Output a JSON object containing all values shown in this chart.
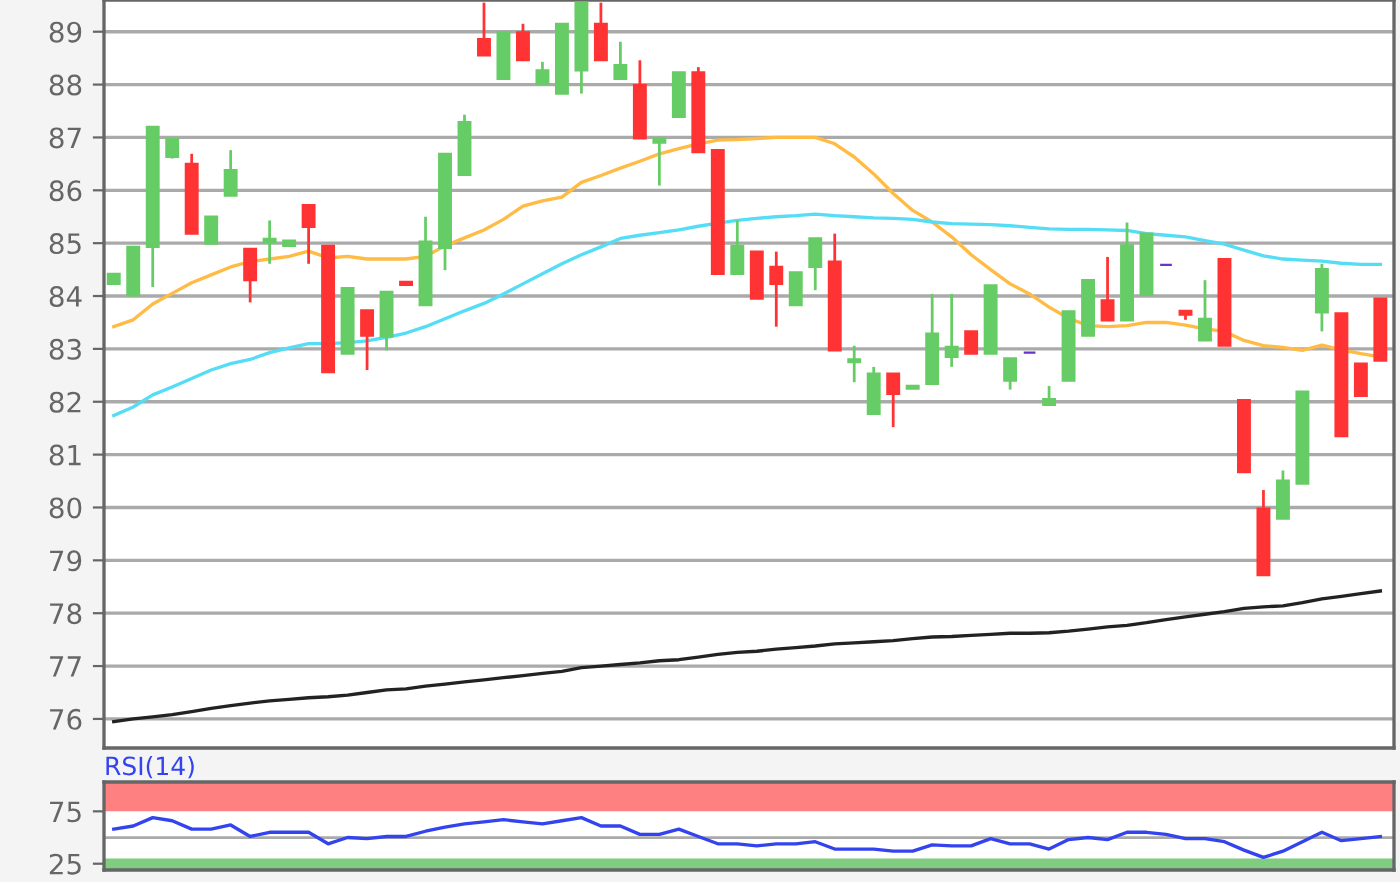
{
  "chart_data": [
    {
      "type": "candlestick",
      "categories": [
        null,
        null,
        null,
        null,
        null,
        null,
        null,
        null,
        null,
        null,
        null,
        null,
        null,
        null,
        null,
        null,
        null,
        null,
        null,
        null,
        null,
        null,
        null,
        null,
        null,
        null,
        null,
        null,
        null,
        null,
        null,
        null,
        null,
        null,
        null,
        null,
        null,
        null,
        null,
        null,
        null,
        null,
        null,
        null,
        null,
        null,
        null,
        null,
        null,
        null,
        null,
        null,
        null,
        null,
        null,
        null,
        null,
        null,
        null,
        null,
        null,
        null,
        null,
        null,
        null,
        null
      ],
      "ohlc": [
        [
          84.23,
          84.42,
          84.23,
          84.42
        ],
        [
          84.01,
          84.93,
          84.01,
          84.93
        ],
        [
          84.93,
          87.2,
          84.17,
          87.2
        ],
        [
          86.63,
          86.97,
          86.6,
          86.97
        ],
        [
          86.5,
          86.69,
          85.18,
          85.18
        ],
        [
          84.99,
          85.5,
          84.99,
          85.5
        ],
        [
          85.9,
          86.76,
          85.9,
          86.38
        ],
        [
          84.89,
          84.89,
          83.88,
          84.3
        ],
        [
          85.02,
          85.43,
          84.61,
          85.08
        ],
        [
          84.95,
          85.05,
          84.95,
          85.05
        ],
        [
          85.72,
          85.72,
          84.61,
          85.31
        ],
        [
          84.95,
          84.95,
          82.56,
          82.56
        ],
        [
          82.91,
          84.15,
          82.91,
          84.15
        ],
        [
          83.73,
          83.73,
          82.6,
          83.25
        ],
        [
          83.23,
          84.08,
          82.97,
          84.08
        ],
        [
          84.27,
          84.27,
          84.21,
          84.21
        ],
        [
          83.83,
          85.5,
          83.83,
          85.03
        ],
        [
          84.91,
          86.69,
          84.49,
          86.69
        ],
        [
          86.29,
          87.43,
          86.29,
          87.29
        ],
        [
          88.86,
          89.55,
          88.55,
          88.55
        ],
        [
          88.11,
          88.99,
          88.11,
          88.99
        ],
        [
          88.99,
          89.15,
          88.46,
          88.46
        ],
        [
          88.02,
          88.43,
          88.02,
          88.27
        ],
        [
          87.83,
          89.15,
          87.83,
          89.15
        ],
        [
          88.27,
          89.55,
          87.83,
          89.55
        ],
        [
          89.15,
          89.55,
          88.46,
          88.46
        ],
        [
          88.11,
          88.81,
          88.11,
          88.37
        ],
        [
          87.99,
          88.46,
          86.98,
          86.98
        ],
        [
          86.9,
          86.98,
          86.09,
          86.98
        ],
        [
          87.39,
          88.23,
          87.39,
          88.23
        ],
        [
          88.23,
          88.33,
          86.72,
          86.72
        ],
        [
          86.76,
          86.76,
          84.42,
          84.42
        ],
        [
          84.42,
          85.43,
          84.42,
          84.95
        ],
        [
          84.84,
          84.84,
          83.95,
          83.95
        ],
        [
          84.55,
          84.84,
          83.42,
          84.23
        ],
        [
          83.83,
          84.45,
          83.83,
          84.45
        ],
        [
          84.55,
          85.09,
          84.11,
          85.09
        ],
        [
          84.65,
          85.18,
          82.97,
          82.97
        ],
        [
          82.75,
          83.06,
          82.37,
          82.8
        ],
        [
          81.77,
          82.66,
          81.77,
          82.53
        ],
        [
          82.53,
          82.53,
          81.52,
          82.15
        ],
        [
          82.25,
          82.3,
          82.25,
          82.3
        ],
        [
          82.34,
          84.04,
          82.34,
          83.29
        ],
        [
          82.85,
          84.04,
          82.66,
          83.04
        ],
        [
          83.33,
          83.33,
          82.91,
          82.91
        ],
        [
          82.91,
          84.2,
          82.91,
          84.2
        ],
        [
          82.4,
          82.82,
          82.23,
          82.82
        ],
        [
          82.93,
          82.93,
          82.93,
          82.93
        ],
        [
          81.94,
          82.3,
          81.94,
          82.05
        ],
        [
          82.4,
          83.71,
          82.4,
          83.71
        ],
        [
          83.25,
          84.3,
          83.25,
          84.3
        ],
        [
          83.92,
          84.74,
          83.54,
          83.54
        ],
        [
          83.54,
          85.39,
          83.54,
          84.96
        ],
        [
          84.02,
          85.18,
          84.02,
          85.18
        ],
        [
          84.59,
          84.59,
          84.59,
          84.59
        ],
        [
          83.72,
          83.72,
          83.55,
          83.65
        ],
        [
          83.16,
          84.3,
          83.16,
          83.57
        ],
        [
          84.7,
          84.7,
          83.06,
          83.06
        ],
        [
          82.03,
          82.03,
          80.67,
          80.67
        ],
        [
          79.98,
          80.33,
          78.72,
          78.72
        ],
        [
          79.79,
          80.7,
          79.79,
          80.51
        ],
        [
          80.45,
          82.19,
          80.45,
          82.19
        ],
        [
          83.69,
          84.61,
          83.33,
          84.51
        ],
        [
          83.67,
          83.67,
          81.35,
          81.35
        ],
        [
          82.72,
          82.72,
          82.11,
          82.11
        ],
        [
          83.95,
          83.95,
          82.78,
          82.78
        ]
      ],
      "colors": [
        "#66cc66",
        "#66cc66",
        "#66cc66",
        "#66cc66",
        "#ff3333",
        "#66cc66",
        "#66cc66",
        "#ff3333",
        "#66cc66",
        "#66cc66",
        "#ff3333",
        "#ff3333",
        "#66cc66",
        "#ff3333",
        "#66cc66",
        "#ff3333",
        "#66cc66",
        "#66cc66",
        "#66cc66",
        "#ff3333",
        "#66cc66",
        "#ff3333",
        "#66cc66",
        "#66cc66",
        "#66cc66",
        "#ff3333",
        "#66cc66",
        "#ff3333",
        "#66cc66",
        "#66cc66",
        "#ff3333",
        "#ff3333",
        "#66cc66",
        "#ff3333",
        "#ff3333",
        "#66cc66",
        "#66cc66",
        "#ff3333",
        "#66cc66",
        "#66cc66",
        "#ff3333",
        "#66cc66",
        "#66cc66",
        "#66cc66",
        "#ff3333",
        "#66cc66",
        "#66cc66",
        "#6633cc",
        "#66cc66",
        "#66cc66",
        "#66cc66",
        "#ff3333",
        "#66cc66",
        "#66cc66",
        "#6633cc",
        "#ff3333",
        "#66cc66",
        "#ff3333",
        "#ff3333",
        "#ff3333",
        "#66cc66",
        "#66cc66",
        "#66cc66",
        "#ff3333",
        "#ff3333",
        "#ff3333"
      ],
      "series": [
        {
          "type": "line",
          "color": "#ffbb44",
          "values": [
            83.42,
            83.55,
            83.85,
            84.05,
            84.25,
            84.4,
            84.55,
            84.65,
            84.7,
            84.75,
            84.85,
            84.72,
            84.75,
            84.7,
            84.7,
            84.7,
            84.75,
            84.95,
            85.1,
            85.25,
            85.45,
            85.7,
            85.8,
            85.87,
            86.15,
            86.28,
            86.42,
            86.55,
            86.69,
            86.79,
            86.88,
            86.95,
            86.96,
            86.98,
            87.0,
            87.0,
            87.0,
            86.88,
            86.63,
            86.31,
            85.94,
            85.62,
            85.4,
            85.12,
            84.78,
            84.5,
            84.23,
            84.04,
            83.79,
            83.58,
            83.44,
            83.42,
            83.44,
            83.5,
            83.5,
            83.45,
            83.38,
            83.33,
            83.16,
            83.06,
            83.03,
            82.97,
            83.07,
            82.98,
            82.91,
            82.85
          ]
        },
        {
          "type": "line",
          "color": "#55ddf5",
          "values": [
            81.74,
            81.9,
            82.13,
            82.28,
            82.44,
            82.6,
            82.72,
            82.8,
            82.93,
            83.02,
            83.1,
            83.1,
            83.12,
            83.15,
            83.22,
            83.3,
            83.42,
            83.57,
            83.72,
            83.86,
            84.04,
            84.23,
            84.42,
            84.61,
            84.78,
            84.93,
            85.09,
            85.15,
            85.2,
            85.25,
            85.32,
            85.38,
            85.43,
            85.47,
            85.5,
            85.52,
            85.55,
            85.52,
            85.5,
            85.48,
            85.47,
            85.45,
            85.4,
            85.37,
            85.36,
            85.35,
            85.33,
            85.3,
            85.27,
            85.26,
            85.26,
            85.25,
            85.24,
            85.18,
            85.15,
            85.12,
            85.05,
            84.98,
            84.87,
            84.76,
            84.7,
            84.68,
            84.66,
            84.62,
            84.6,
            84.6
          ]
        },
        {
          "type": "line",
          "color": "#222222",
          "values": [
            75.95,
            76.0,
            76.04,
            76.08,
            76.14,
            76.2,
            76.25,
            76.3,
            76.34,
            76.37,
            76.4,
            76.42,
            76.45,
            76.5,
            76.55,
            76.57,
            76.62,
            76.66,
            76.7,
            76.74,
            76.78,
            76.82,
            76.86,
            76.9,
            76.97,
            77.0,
            77.03,
            77.06,
            77.1,
            77.12,
            77.17,
            77.22,
            77.26,
            77.28,
            77.32,
            77.35,
            77.38,
            77.42,
            77.44,
            77.46,
            77.48,
            77.52,
            77.55,
            77.56,
            77.58,
            77.6,
            77.62,
            77.62,
            77.63,
            77.66,
            77.7,
            77.74,
            77.77,
            77.82,
            77.88,
            77.93,
            77.98,
            78.03,
            78.09,
            78.12,
            78.14,
            78.2,
            78.27,
            78.32,
            78.37,
            78.42
          ]
        }
      ],
      "ylim": [
        75.45,
        89.6
      ],
      "yticks": [
        76,
        77,
        78,
        79,
        80,
        81,
        82,
        83,
        84,
        85,
        86,
        87,
        88,
        89
      ],
      "grid": "y",
      "tick_labels": "y"
    },
    {
      "type": "line",
      "categories": [
        null,
        null,
        null,
        null,
        null,
        null,
        null,
        null,
        null,
        null,
        null,
        null,
        null,
        null,
        null,
        null,
        null,
        null,
        null,
        null,
        null,
        null,
        null,
        null,
        null,
        null,
        null,
        null,
        null,
        null,
        null,
        null,
        null,
        null,
        null,
        null,
        null,
        null,
        null,
        null,
        null,
        null,
        null,
        null,
        null,
        null,
        null,
        null,
        null,
        null,
        null,
        null,
        null,
        null,
        null,
        null,
        null,
        null,
        null,
        null,
        null,
        null,
        null,
        null,
        null,
        null
      ],
      "series": [
        {
          "name": "RSI(14)",
          "color": "#3344ee",
          "values": [
            58,
            61,
            69,
            66,
            58,
            58,
            62,
            51,
            55,
            55,
            55,
            44,
            50,
            49,
            51,
            51,
            56,
            60,
            63,
            65,
            67,
            65,
            63,
            66,
            69,
            61,
            61,
            53,
            53,
            58,
            51,
            44,
            44,
            42,
            44,
            44,
            46,
            39,
            39,
            39,
            37,
            37,
            43,
            42,
            42,
            49,
            44,
            44,
            39,
            48,
            50,
            48,
            55,
            55,
            53,
            49,
            49,
            46,
            38,
            31,
            37,
            46,
            55,
            47,
            49,
            51
          ]
        }
      ],
      "ylim": [
        19,
        103
      ],
      "yticks": [
        25,
        75
      ],
      "bands": [
        {
          "axis": "y",
          "from": 75,
          "to": 103,
          "color": "#ff8080"
        },
        {
          "axis": "y",
          "from": 19,
          "to": 30,
          "color": "#80cc80"
        }
      ],
      "ref_lines": [
        {
          "axis": "y",
          "value": 50,
          "color": "#aaaaaa"
        }
      ],
      "tick_labels": "y"
    }
  ]
}
